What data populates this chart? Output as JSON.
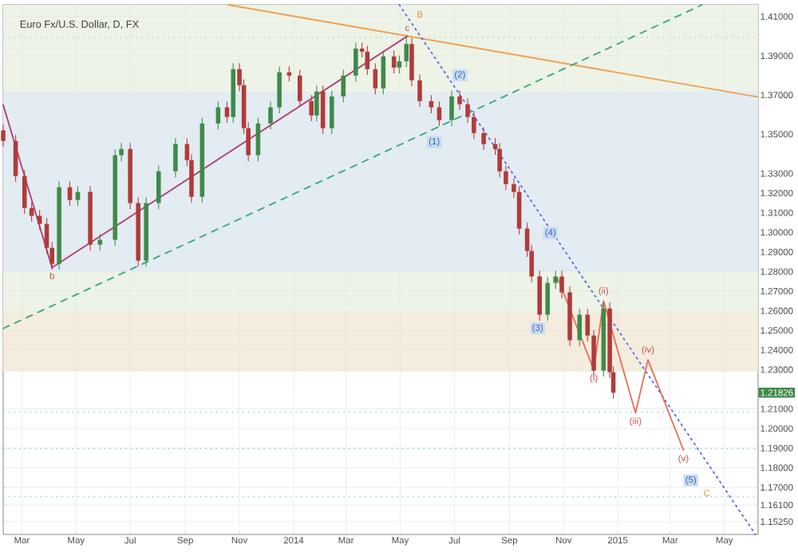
{
  "chart_data": {
    "type": "candlestick",
    "title": "Euro Fx/U.S. Dollar, D, FX",
    "x": [
      "2013-02-08",
      "2013-02-22",
      "2013-03-04",
      "2013-03-12",
      "2013-03-21",
      "2013-03-29",
      "2013-04-04",
      "2013-04-12",
      "2013-04-24",
      "2013-05-03",
      "2013-05-17",
      "2013-05-28",
      "2013-06-14",
      "2013-06-21",
      "2013-07-01",
      "2013-07-10",
      "2013-07-19",
      "2013-08-02",
      "2013-08-21",
      "2013-09-03",
      "2013-09-08",
      "2013-09-20",
      "2013-10-08",
      "2013-10-18",
      "2013-10-25",
      "2013-11-01",
      "2013-11-06",
      "2013-11-11",
      "2013-11-22",
      "2013-12-06",
      "2013-12-16",
      "2013-12-27",
      "2014-01-08",
      "2014-01-21",
      "2014-01-27",
      "2014-02-03",
      "2014-02-13",
      "2014-02-26",
      "2014-03-12",
      "2014-03-19",
      "2014-03-25",
      "2014-04-03",
      "2014-04-12",
      "2014-04-24",
      "2014-04-30",
      "2014-05-08",
      "2014-05-14",
      "2014-05-23",
      "2014-06-05",
      "2014-06-14",
      "2014-06-28",
      "2014-07-07",
      "2014-07-16",
      "2014-07-23",
      "2014-08-03",
      "2014-08-16",
      "2014-08-21",
      "2014-08-28",
      "2014-09-06",
      "2014-09-12",
      "2014-09-21",
      "2014-09-26",
      "2014-10-05",
      "2014-10-14",
      "2014-10-23",
      "2014-10-30",
      "2014-11-08",
      "2014-11-19",
      "2014-11-28",
      "2014-12-05",
      "2014-12-16",
      "2014-12-23",
      "2014-12-27"
    ],
    "ohlc": [
      [
        1.352,
        1.355,
        1.3436,
        1.3466
      ],
      [
        1.3466,
        1.3496,
        1.3257,
        1.3287
      ],
      [
        1.3287,
        1.3317,
        1.3094,
        1.3124
      ],
      [
        1.3124,
        1.3154,
        1.3054,
        1.3084
      ],
      [
        1.3084,
        1.3114,
        1.3013,
        1.3043
      ],
      [
        1.3043,
        1.3073,
        1.2891,
        1.2921
      ],
      [
        1.2921,
        1.2951,
        1.281,
        1.284
      ],
      [
        1.284,
        1.326,
        1.281,
        1.323
      ],
      [
        1.323,
        1.326,
        1.3135,
        1.3165
      ],
      [
        1.3165,
        1.3236,
        1.3135,
        1.3206
      ],
      [
        1.3206,
        1.3236,
        1.2907,
        1.2937
      ],
      [
        1.2937,
        1.2992,
        1.2907,
        1.2962
      ],
      [
        1.2962,
        1.3423,
        1.2932,
        1.3393
      ],
      [
        1.3393,
        1.3455,
        1.3363,
        1.3425
      ],
      [
        1.3425,
        1.3455,
        1.3119,
        1.3149
      ],
      [
        1.3149,
        1.3179,
        1.2826,
        1.2856
      ],
      [
        1.2856,
        1.3179,
        1.2826,
        1.3149
      ],
      [
        1.3149,
        1.3341,
        1.3119,
        1.3311
      ],
      [
        1.3311,
        1.348,
        1.3281,
        1.345
      ],
      [
        1.345,
        1.348,
        1.3338,
        1.3368
      ],
      [
        1.3368,
        1.3398,
        1.3151,
        1.3181
      ],
      [
        1.3181,
        1.3585,
        1.3151,
        1.3555
      ],
      [
        1.3555,
        1.3667,
        1.3525,
        1.3637
      ],
      [
        1.3637,
        1.3667,
        1.3558,
        1.3588
      ],
      [
        1.3588,
        1.3862,
        1.3558,
        1.3832
      ],
      [
        1.3832,
        1.3862,
        1.372,
        1.375
      ],
      [
        1.375,
        1.378,
        1.3501,
        1.3531
      ],
      [
        1.3531,
        1.3561,
        1.3363,
        1.3393
      ],
      [
        1.3393,
        1.3585,
        1.3363,
        1.3555
      ],
      [
        1.3555,
        1.3667,
        1.3525,
        1.3637
      ],
      [
        1.3637,
        1.3846,
        1.3607,
        1.3816
      ],
      [
        1.3816,
        1.3846,
        1.3769,
        1.3799
      ],
      [
        1.3799,
        1.3829,
        1.3639,
        1.3669
      ],
      [
        1.3669,
        1.3699,
        1.3566,
        1.3596
      ],
      [
        1.3596,
        1.3748,
        1.3566,
        1.3718
      ],
      [
        1.3718,
        1.3748,
        1.3501,
        1.3531
      ],
      [
        1.3531,
        1.3723,
        1.3501,
        1.3693
      ],
      [
        1.3693,
        1.3829,
        1.3663,
        1.3799
      ],
      [
        1.3799,
        1.3967,
        1.3769,
        1.3937
      ],
      [
        1.3937,
        1.3967,
        1.3891,
        1.3921
      ],
      [
        1.3921,
        1.3951,
        1.3802,
        1.3832
      ],
      [
        1.3832,
        1.3862,
        1.3704,
        1.3734
      ],
      [
        1.3734,
        1.3927,
        1.3704,
        1.3897
      ],
      [
        1.3897,
        1.3927,
        1.381,
        1.384
      ],
      [
        1.384,
        1.3902,
        1.381,
        1.3872
      ],
      [
        1.3872,
        1.3994,
        1.3842,
        1.396
      ],
      [
        1.396,
        1.399,
        1.3745,
        1.3775
      ],
      [
        1.3775,
        1.3805,
        1.3639,
        1.3669
      ],
      [
        1.3669,
        1.3699,
        1.3607,
        1.3637
      ],
      [
        1.3637,
        1.3667,
        1.3542,
        1.3572
      ],
      [
        1.3572,
        1.3723,
        1.3542,
        1.3693
      ],
      [
        1.3693,
        1.3723,
        1.3623,
        1.3653
      ],
      [
        1.3653,
        1.3683,
        1.3558,
        1.3588
      ],
      [
        1.3588,
        1.3618,
        1.3476,
        1.3506
      ],
      [
        1.3506,
        1.3536,
        1.342,
        1.345
      ],
      [
        1.345,
        1.348,
        1.3395,
        1.3425
      ],
      [
        1.3425,
        1.3455,
        1.3281,
        1.3311
      ],
      [
        1.3311,
        1.3341,
        1.3216,
        1.3246
      ],
      [
        1.3246,
        1.3276,
        1.3176,
        1.3206
      ],
      [
        1.3206,
        1.3236,
        1.2989,
        1.3019
      ],
      [
        1.3019,
        1.3049,
        1.2875,
        1.2905
      ],
      [
        1.2905,
        1.2935,
        1.2745,
        1.2775
      ],
      [
        1.2775,
        1.2805,
        1.255,
        1.258
      ],
      [
        1.258,
        1.2772,
        1.255,
        1.2742
      ],
      [
        1.2742,
        1.2805,
        1.2712,
        1.2775
      ],
      [
        1.2775,
        1.2805,
        1.2664,
        1.2694
      ],
      [
        1.2694,
        1.2724,
        1.242,
        1.245
      ],
      [
        1.245,
        1.261,
        1.242,
        1.258
      ],
      [
        1.258,
        1.261,
        1.2444,
        1.2474
      ],
      [
        1.2474,
        1.2504,
        1.2265,
        1.2295
      ],
      [
        1.2295,
        1.2642,
        1.2265,
        1.2612
      ],
      [
        1.2612,
        1.2642,
        1.2257,
        1.2287
      ],
      [
        1.2287,
        1.2317,
        1.2153,
        1.21826
      ]
    ],
    "colors": [
      "#b23a3a",
      "#b23a3a",
      "#b23a3a",
      "#b23a3a",
      "#b23a3a",
      "#b23a3a",
      "#b23a3a",
      "#3f8a4a",
      "#b23a3a",
      "#3f8a4a",
      "#b23a3a",
      "#3f8a4a",
      "#3f8a4a",
      "#3f8a4a",
      "#b23a3a",
      "#b23a3a",
      "#3f8a4a",
      "#3f8a4a",
      "#3f8a4a",
      "#b23a3a",
      "#b23a3a",
      "#3f8a4a",
      "#3f8a4a",
      "#b23a3a",
      "#3f8a4a",
      "#b23a3a",
      "#b23a3a",
      "#b23a3a",
      "#3f8a4a",
      "#3f8a4a",
      "#3f8a4a",
      "#b23a3a",
      "#b23a3a",
      "#b23a3a",
      "#3f8a4a",
      "#b23a3a",
      "#3f8a4a",
      "#3f8a4a",
      "#3f8a4a",
      "#b23a3a",
      "#b23a3a",
      "#b23a3a",
      "#3f8a4a",
      "#b23a3a",
      "#3f8a4a",
      "#3f8a4a",
      "#b23a3a",
      "#b23a3a",
      "#b23a3a",
      "#b23a3a",
      "#3f8a4a",
      "#b23a3a",
      "#b23a3a",
      "#b23a3a",
      "#b23a3a",
      "#b23a3a",
      "#b23a3a",
      "#b23a3a",
      "#b23a3a",
      "#b23a3a",
      "#b23a3a",
      "#b23a3a",
      "#b23a3a",
      "#3f8a4a",
      "#3f8a4a",
      "#b23a3a",
      "#b23a3a",
      "#3f8a4a",
      "#b23a3a",
      "#b23a3a",
      "#3f8a4a",
      "#b23a3a",
      "#b23a3a"
    ],
    "series": [
      {
        "type": "line",
        "color": "#f0a050",
        "line_style": "solid",
        "x": [
          "2013-10-19",
          "2015-06-08"
        ],
        "values": [
          1.416,
          1.369
        ]
      },
      {
        "type": "line",
        "color": "#3aaa80",
        "line_style": "dashed",
        "x": [
          "2013-02-08",
          "2015-04-06"
        ],
        "values": [
          1.251,
          1.416
        ]
      },
      {
        "type": "line",
        "color": "#5a6af0",
        "line_style": "dotted",
        "x": [
          "2014-04-30",
          "2015-06-05"
        ],
        "values": [
          1.416,
          1.146
        ]
      },
      {
        "type": "line",
        "color": "#b0407a",
        "line_style": "solid",
        "x": [
          "2013-02-08",
          "2013-04-04"
        ],
        "values": [
          1.365,
          1.282
        ]
      },
      {
        "type": "line",
        "color": "#b0407a",
        "line_style": "solid",
        "x": [
          "2013-04-04",
          "2014-05-09"
        ],
        "values": [
          1.282,
          1.4
        ]
      },
      {
        "type": "line",
        "color": "#e8705a",
        "line_style": "solid",
        "x": [
          "2014-10-26",
          "2014-12-05",
          "2014-12-16",
          "2015-01-21",
          "2015-02-04",
          "2015-03-16"
        ],
        "values": [
          1.276,
          1.23,
          1.265,
          1.208,
          1.235,
          1.189
        ]
      }
    ],
    "bands": [
      {
        "axis": "y",
        "from": 1.372,
        "to": 1.416,
        "color": "#edf3e6"
      },
      {
        "axis": "y",
        "from": 1.28,
        "to": 1.372,
        "color": "#e2ecf2"
      },
      {
        "axis": "y",
        "from": 1.259,
        "to": 1.28,
        "color": "#edf3e6"
      },
      {
        "axis": "y",
        "from": 1.229,
        "to": 1.259,
        "color": "#f4ecdc"
      }
    ],
    "ref_lines": [
      {
        "axis": "y",
        "value": 1.3994,
        "color": "#7fd0d8",
        "line_style": "dotted"
      },
      {
        "axis": "y",
        "value": 1.2084,
        "color": "#7fd0d8",
        "line_style": "dotted"
      },
      {
        "axis": "y",
        "value": 1.1897,
        "color": "#7fd0d8",
        "line_style": "dotted"
      },
      {
        "axis": "y",
        "value": 1.1653,
        "color": "#7fd0d8",
        "line_style": "dotted"
      }
    ],
    "annotations": [
      {
        "text": "b",
        "x": "2013-04-04",
        "y": 1.282
      },
      {
        "text": "c",
        "x": "2014-05-09",
        "y": 1.4
      },
      "B",
      "(2)",
      "(1)",
      "(4)",
      "(3)",
      "(5)",
      "C",
      {
        "text": "(i)",
        "x": "2014-12-05",
        "y": 1.23
      },
      {
        "text": "(ii)",
        "x": "2014-12-16",
        "y": 1.265
      },
      {
        "text": "(iii)",
        "x": "2015-01-21",
        "y": 1.208
      },
      {
        "text": "(iv)",
        "x": "2015-02-04",
        "y": 1.235
      },
      {
        "text": "(v)",
        "x": "2015-03-16",
        "y": 1.189
      },
      "1.21826"
    ],
    "xlim": [
      "2013-02-08",
      "2015-06-08"
    ],
    "xticks": [
      {
        "value": "2013-03-01",
        "label": "Mar"
      },
      {
        "value": "2013-05-01",
        "label": "May"
      },
      {
        "value": "2013-07-01",
        "label": "Jul"
      },
      {
        "value": "2013-09-01",
        "label": "Sep"
      },
      {
        "value": "2013-11-01",
        "label": "Nov"
      },
      {
        "value": "2014-01-01",
        "label": "2014"
      },
      {
        "value": "2014-03-01",
        "label": "Mar"
      },
      {
        "value": "2014-05-01",
        "label": "May"
      },
      {
        "value": "2014-07-01",
        "label": "Jul"
      },
      {
        "value": "2014-09-01",
        "label": "Sep"
      },
      {
        "value": "2014-11-01",
        "label": "Nov"
      },
      {
        "value": "2015-01-01",
        "label": "2015"
      },
      {
        "value": "2015-03-01",
        "label": "Mar"
      },
      {
        "value": "2015-05-01",
        "label": "May"
      }
    ],
    "ylim": [
      1.146,
      1.416
    ],
    "yticks": [
      {
        "value": 1.41,
        "label": "1.41000"
      },
      {
        "value": 1.39,
        "label": "1.39000"
      },
      {
        "value": 1.37,
        "label": "1.37000"
      },
      {
        "value": 1.35,
        "label": "1.35000"
      },
      {
        "value": 1.33,
        "label": "1.33000"
      },
      {
        "value": 1.32,
        "label": "1.32000"
      },
      {
        "value": 1.31,
        "label": "1.31000"
      },
      {
        "value": 1.3,
        "label": "1.30000"
      },
      {
        "value": 1.29,
        "label": "1.29000"
      },
      {
        "value": 1.28,
        "label": "1.28000"
      },
      {
        "value": 1.27,
        "label": "1.27000"
      },
      {
        "value": 1.26,
        "label": "1.26000"
      },
      {
        "value": 1.25,
        "label": "1.25000"
      },
      {
        "value": 1.24,
        "label": "1.24000"
      },
      {
        "value": 1.23,
        "label": "1.23000"
      },
      {
        "value": 1.21,
        "label": "1.21000"
      },
      {
        "value": 1.2,
        "label": "1.20000"
      },
      {
        "value": 1.19,
        "label": "1.19000"
      },
      {
        "value": 1.18,
        "label": "1.18000"
      },
      {
        "value": 1.17,
        "label": "1.17000"
      },
      {
        "value": 1.161,
        "label": "1.16100"
      },
      {
        "value": 1.1525,
        "label": "1.15250"
      }
    ],
    "grid": true,
    "marker": "none"
  }
}
